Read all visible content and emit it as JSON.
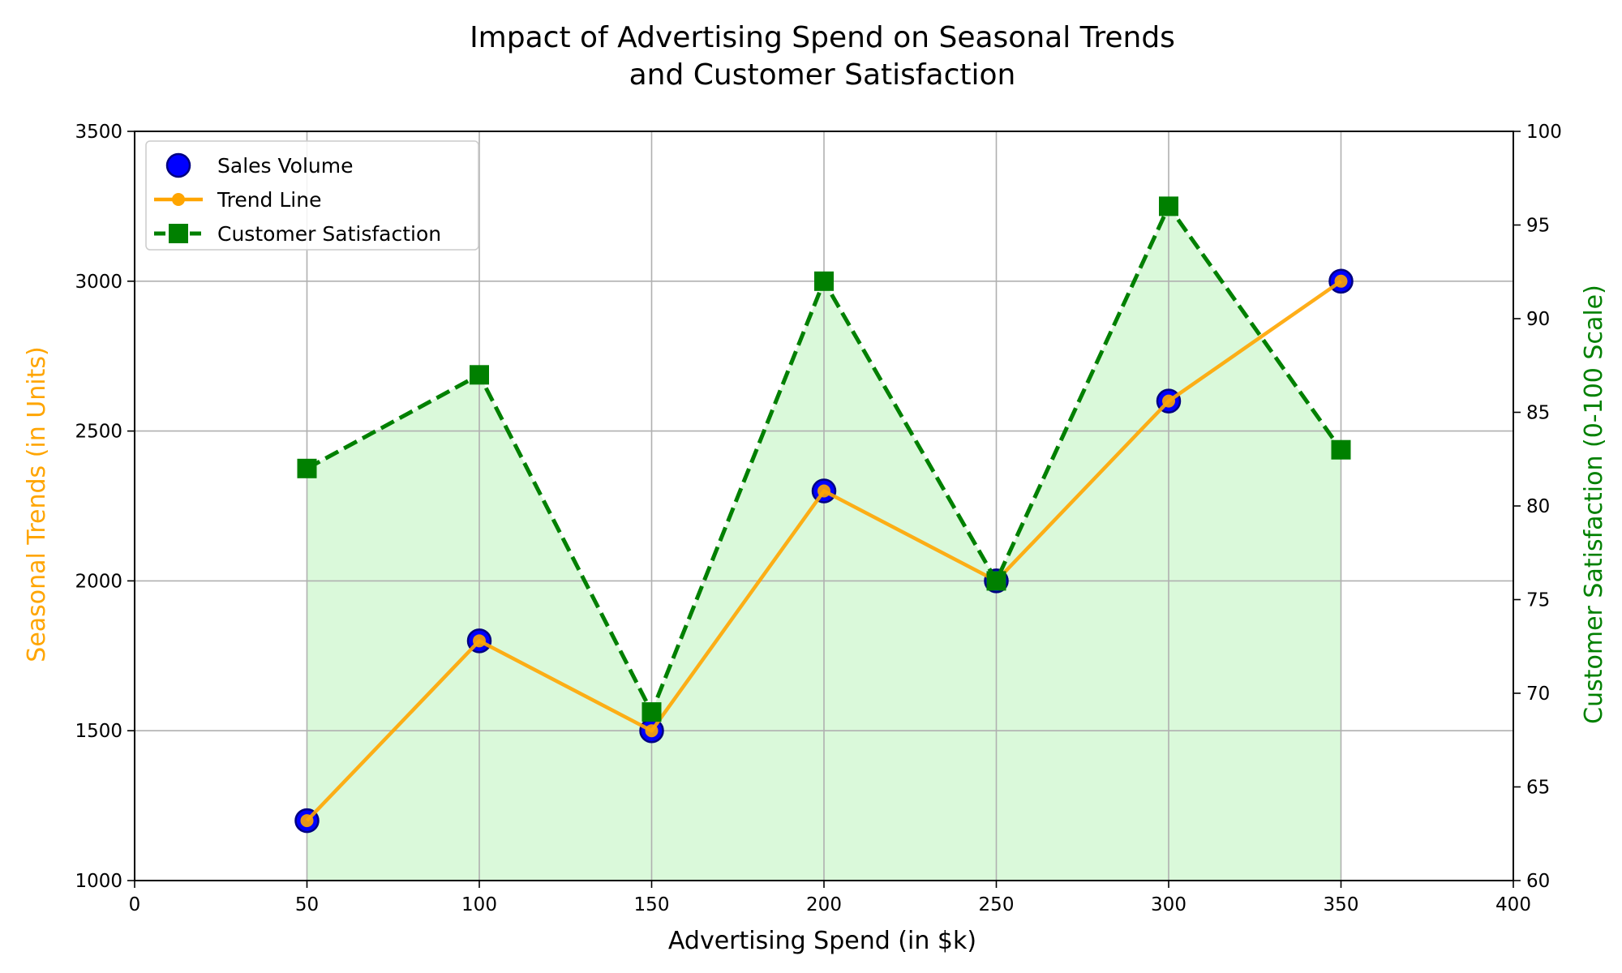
{
  "chart_data": {
    "type": "line",
    "title_lines": [
      "Impact of Advertising Spend on Seasonal Trends",
      "and Customer Satisfaction"
    ],
    "xlabel": "Advertising Spend (in $k)",
    "ylabel_left": "Seasonal Trends (in Units)",
    "ylabel_right": "Customer Satisfaction (0-100 Scale)",
    "xlim": [
      0,
      400
    ],
    "ylim_left": [
      1000,
      3500
    ],
    "ylim_right": [
      60,
      100
    ],
    "x_ticks": [
      0,
      50,
      100,
      150,
      200,
      250,
      300,
      350,
      400
    ],
    "y_left_ticks": [
      1000,
      1500,
      2000,
      2500,
      3000,
      3500
    ],
    "y_right_ticks": [
      60,
      65,
      70,
      75,
      80,
      85,
      90,
      95,
      100
    ],
    "grid": true,
    "legend_placement": "top-left",
    "x": [
      50,
      100,
      150,
      200,
      250,
      300,
      350
    ],
    "series": [
      {
        "name": "Sales Volume",
        "kind": "scatter",
        "axis": "left",
        "values": [
          1200,
          1800,
          1500,
          2300,
          2000,
          2600,
          3000
        ],
        "color": "#0000ff",
        "edge_color": "#000080"
      },
      {
        "name": "Trend Line",
        "kind": "line",
        "axis": "left",
        "values": [
          1200,
          1800,
          1500,
          2300,
          2000,
          2600,
          3000
        ],
        "color": "#ffa500"
      },
      {
        "name": "Customer Satisfaction",
        "kind": "line-dashed-square",
        "axis": "right",
        "values": [
          82,
          87,
          69,
          92,
          76,
          96,
          83
        ],
        "color": "#008000",
        "fill_color": "#90ee90"
      }
    ],
    "colors": {
      "ylabel_left": "#ffa500",
      "ylabel_right": "#008000",
      "grid": "#b0b0b0"
    }
  }
}
